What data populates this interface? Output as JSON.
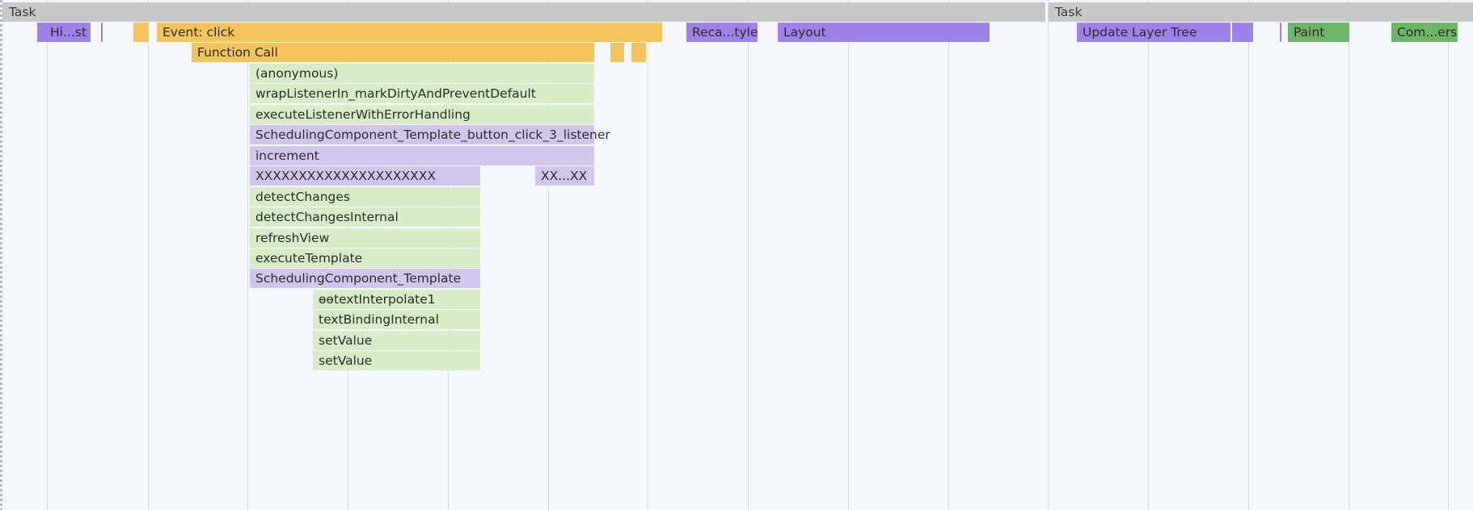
{
  "colors": {
    "task": "#c8c8c8",
    "scripting": "#f2c45a",
    "rendering": "#9d82ea",
    "painting": "#6eb666",
    "js_frame": "#d8ecc8",
    "angular_frame": "#d0c6ee"
  },
  "tasks": [
    {
      "label": "Task"
    },
    {
      "label": "Task"
    }
  ],
  "events": {
    "hit_test": "Hi...st",
    "event_click": "Event: click",
    "recalc_style": "Reca...tyle",
    "layout": "Layout",
    "update_layer_tree": "Update Layer Tree",
    "paint": "Paint",
    "composite_layers": "Com...ers"
  },
  "stack": {
    "function_call": "Function Call",
    "anonymous": "(anonymous)",
    "wrap_listener": "wrapListenerIn_markDirtyAndPreventDefault",
    "execute_listener": "executeListenerWithErrorHandling",
    "click_listener": "SchedulingComponent_Template_button_click_3_listener",
    "increment": "increment",
    "xxx_long": "XXXXXXXXXXXXXXXXXXXXX",
    "xxx_short": "XX...XX",
    "detect_changes": "detectChanges",
    "detect_changes_internal": "detectChangesInternal",
    "refresh_view": "refreshView",
    "execute_template": "executeTemplate",
    "component_template": "SchedulingComponent_Template",
    "text_interpolate": "ɵɵtextInterpolate1",
    "text_binding_internal": "textBindingInternal",
    "set_value_1": "setValue",
    "set_value_2": "setValue"
  }
}
